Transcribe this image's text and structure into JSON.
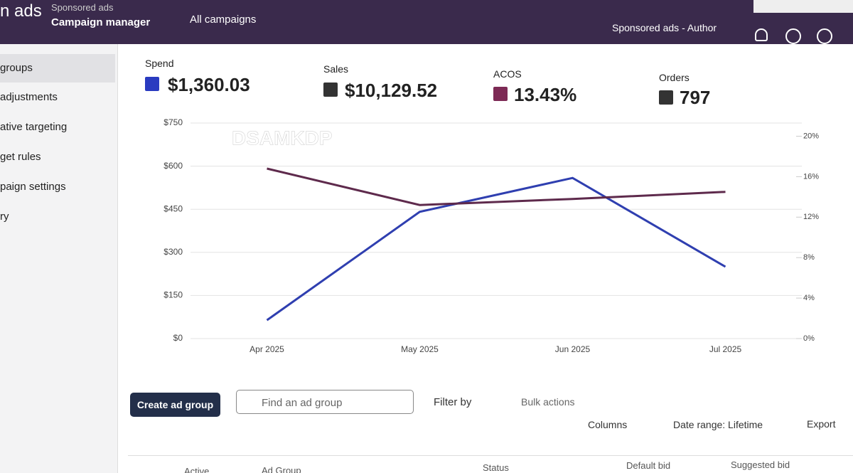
{
  "header": {
    "brand": "n ads",
    "product": "Sponsored ads",
    "section": "Campaign manager",
    "nav": "All campaigns",
    "account": "Sponsored ads - Author"
  },
  "sidebar": {
    "items": [
      "groups",
      "adjustments",
      "ative targeting",
      "get rules",
      "paign settings",
      "ry"
    ]
  },
  "metrics": [
    {
      "label": "Spend",
      "value": "$1,360.03"
    },
    {
      "label": "Sales",
      "value": "$10,129.52"
    },
    {
      "label": "ACOS",
      "value": "13.43%"
    },
    {
      "label": "Orders",
      "value": "797"
    }
  ],
  "chart_data": {
    "type": "line",
    "annotation": "DSAMKDP",
    "categories": [
      "Apr 2025",
      "May 2025",
      "Jun 2025",
      "Jul 2025"
    ],
    "series": [
      {
        "name": "Spend",
        "color": "#2f3fb0",
        "values": [
          64,
          441,
          559,
          250
        ]
      },
      {
        "name": "ACOS",
        "color": "#5e2a4c",
        "axis": "y2",
        "values": [
          16.8,
          13.2,
          13.8,
          14.5
        ]
      }
    ],
    "ylim": [
      0,
      750
    ],
    "yticks": [
      {
        "value": 0,
        "label": "$0"
      },
      {
        "value": 150,
        "label": "$150"
      },
      {
        "value": 300,
        "label": "$300"
      },
      {
        "value": 450,
        "label": "$450"
      },
      {
        "value": 600,
        "label": "$600"
      },
      {
        "value": 750,
        "label": "$750"
      }
    ],
    "y2lim": [
      0,
      21.3
    ],
    "y2ticks": [
      {
        "value": 0,
        "label": "0%"
      },
      {
        "value": 4,
        "label": "4%"
      },
      {
        "value": 8,
        "label": "8%"
      },
      {
        "value": 12,
        "label": "12%"
      },
      {
        "value": 16,
        "label": "16%"
      },
      {
        "value": 20,
        "label": "20%"
      }
    ],
    "grid": true
  },
  "toolbar": {
    "create": "Create ad group",
    "search": "Find an ad group",
    "filter": "Filter by",
    "bulk": "Bulk actions",
    "columns": "Columns",
    "date_range": "Date range: Lifetime",
    "export": "Export"
  },
  "table": {
    "headers": [
      "Active",
      "Ad Group",
      "Status",
      "Default bid",
      "Suggested bid"
    ]
  }
}
